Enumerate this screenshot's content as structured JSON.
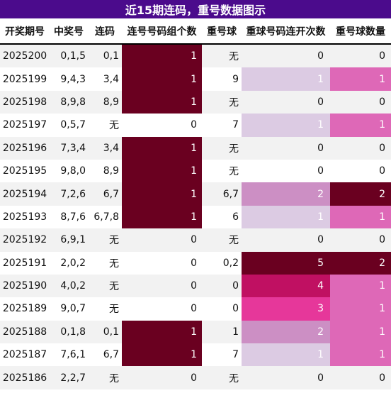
{
  "title": "近15期连码，重号数据图示",
  "columns": [
    "开奖期号",
    "中奖号",
    "连码",
    "连号号码组个数",
    "重号球",
    "重球号码连开次数",
    "重号球数量"
  ],
  "rows": [
    [
      "2025200",
      "0,1,5",
      "0,1",
      "1",
      "无",
      "0",
      "0"
    ],
    [
      "2025199",
      "9,4,3",
      "3,4",
      "1",
      "9",
      "1",
      "1"
    ],
    [
      "2025198",
      "8,9,8",
      "8,9",
      "1",
      "无",
      "0",
      "0"
    ],
    [
      "2025197",
      "0,5,7",
      "无",
      "0",
      "7",
      "1",
      "1"
    ],
    [
      "2025196",
      "7,3,4",
      "3,4",
      "1",
      "无",
      "0",
      "0"
    ],
    [
      "2025195",
      "9,8,0",
      "8,9",
      "1",
      "无",
      "0",
      "0"
    ],
    [
      "2025194",
      "7,2,6",
      "6,7",
      "1",
      "6,7",
      "2",
      "2"
    ],
    [
      "2025193",
      "8,7,6",
      "6,7,8",
      "1",
      "6",
      "1",
      "1"
    ],
    [
      "2025192",
      "6,9,1",
      "无",
      "0",
      "无",
      "0",
      "0"
    ],
    [
      "2025191",
      "2,0,2",
      "无",
      "0",
      "0,2",
      "5",
      "2"
    ],
    [
      "2025190",
      "4,0,2",
      "无",
      "0",
      "0",
      "4",
      "1"
    ],
    [
      "2025189",
      "9,0,7",
      "无",
      "0",
      "0",
      "3",
      "1"
    ],
    [
      "2025188",
      "0,1,8",
      "0,1",
      "1",
      "1",
      "2",
      "1"
    ],
    [
      "2025187",
      "7,6,1",
      "6,7",
      "1",
      "7",
      "1",
      "1"
    ],
    [
      "2025186",
      "2,2,7",
      "无",
      "0",
      "无",
      "0",
      "0"
    ]
  ],
  "colors": {
    "title_bg": "#4b0b8c",
    "heat_zero": "",
    "col3": {
      "1": "#6a0020"
    },
    "col5": {
      "1": "#dccbe3",
      "2": "#cc8fc4",
      "3": "#e6379a",
      "4": "#c01062",
      "5": "#6a0020"
    },
    "col6": {
      "1": "#de68b7",
      "2": "#6a0020"
    }
  }
}
